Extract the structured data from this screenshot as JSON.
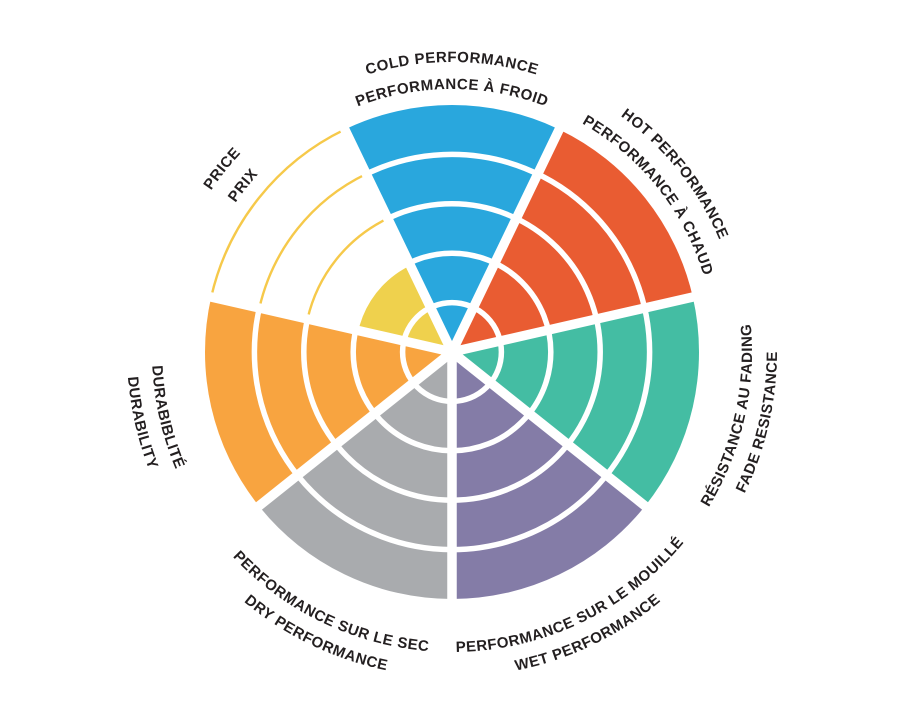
{
  "page": {
    "background": "#FFFFFF"
  },
  "chart_data": {
    "type": "radial-sector-rating",
    "description": "Tire performance rating wheel: 7 equal pie sectors around a center hub, each divided into 5 concentric rating rings; filled ring count encodes the rating value.",
    "rings_max": 5,
    "direction": "clockwise",
    "first_sector_centered_at": "top",
    "ring_separator_color": "#FFFFFF",
    "label_color": "#231F20",
    "sectors": [
      {
        "id": "cold-performance",
        "label_line1": "COLD PERFORMANCE",
        "label_line2": "PERFORMANCE À FROID",
        "value": 5,
        "color": "#29A7DD",
        "text_flow": "clockwise"
      },
      {
        "id": "hot-performance",
        "label_line1": "HOT PERFORMANCE",
        "label_line2": "PERFORMANCE À CHAUD",
        "value": 5,
        "color": "#E95C32",
        "text_flow": "clockwise"
      },
      {
        "id": "fade-resistance",
        "label_line1": "RÉSISTANCE AU FADING",
        "label_line2": "FADE RESISTANCE",
        "value": 5,
        "color": "#44BDA3",
        "text_flow": "counterclockwise"
      },
      {
        "id": "wet-performance",
        "label_line1": "PERFORMANCE SUR LE MOUILLÉ",
        "label_line2": "WET PERFORMANCE",
        "value": 5,
        "color": "#847CA7",
        "text_flow": "counterclockwise"
      },
      {
        "id": "dry-performance",
        "label_line1": "PERFORMANCE SUR LE SEC",
        "label_line2": "DRY PERFORMANCE",
        "value": 5,
        "color": "#A9ABAE",
        "text_flow": "counterclockwise"
      },
      {
        "id": "durability",
        "label_line1": "DURABIBLITÉ",
        "label_line2": "DURABILITY",
        "value": 5,
        "color": "#F8A440",
        "text_flow": "counterclockwise"
      },
      {
        "id": "price",
        "label_line1": "PRICE",
        "label_line2": "PRIX",
        "value": 2,
        "color": "#EFD14D",
        "empty_ring_line_color": "#F6C94A",
        "text_flow": "clockwise"
      }
    ]
  }
}
